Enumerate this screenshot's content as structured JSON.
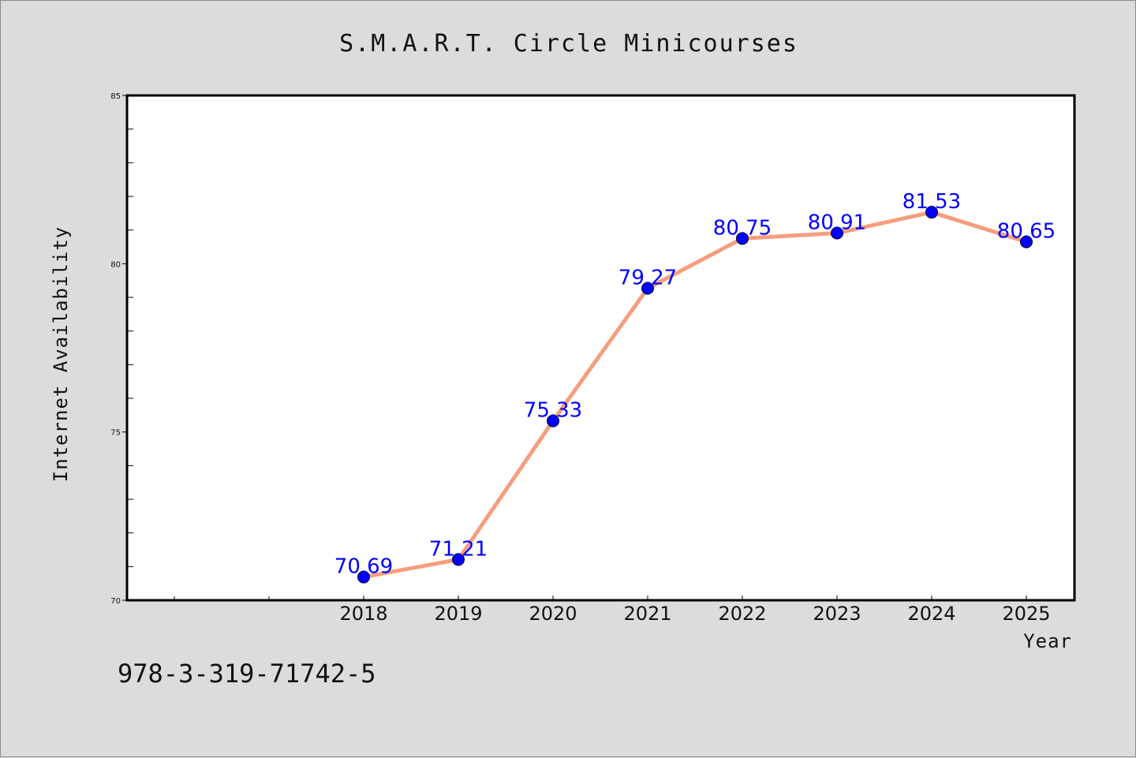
{
  "chart_data": {
    "type": "line",
    "title": "S.M.A.R.T. Circle Minicourses",
    "xlabel": "Year",
    "ylabel": "Internet Availability",
    "x": [
      "2018",
      "2019",
      "2020",
      "2021",
      "2022",
      "2023",
      "2024",
      "2025"
    ],
    "series": [
      {
        "values": [
          70.69,
          71.21,
          75.33,
          79.27,
          80.75,
          80.91,
          81.53,
          80.65
        ],
        "data_labels": [
          "70.69",
          "71.21",
          "75.33",
          "79.27",
          "80.75",
          "80.91",
          "81.53",
          "80.65"
        ],
        "line_color": "#f59e7e",
        "marker_color": "#0000ff"
      }
    ],
    "ylim": [
      70,
      85
    ],
    "y_major_ticks": [
      70,
      75,
      80,
      85
    ],
    "y_major_tick_labels": [
      "70",
      "75",
      "80",
      "85"
    ],
    "x_leading_empty_slots": 2,
    "grid": false,
    "legend": "none"
  },
  "footer": {
    "text": "978-3-319-71742-5"
  }
}
